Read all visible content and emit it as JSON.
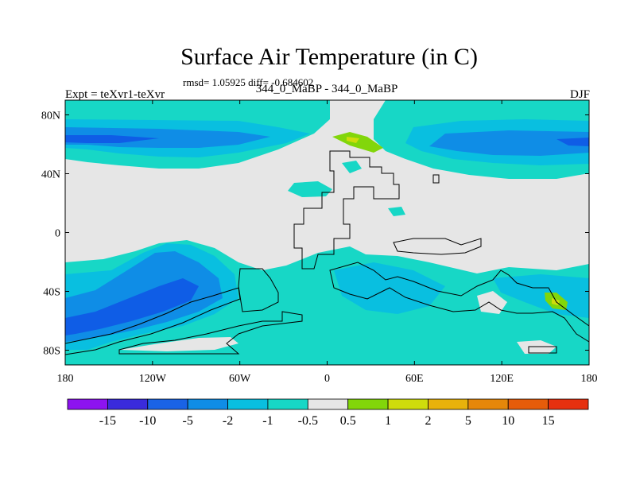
{
  "header": {
    "title": "Surface Air Temperature (in C)",
    "subtitle": "rmsd= 1.05925 diff= -0.684602",
    "left_label": "Expt = teXvr1-teXvr",
    "center_label": "344_0_MaBP - 344_0_MaBP",
    "right_label": "DJF"
  },
  "colors": {
    "no_change": "#e6e6e6",
    "cool_light": "#17d7c6",
    "cool_mid": "#09bfe0",
    "cool_strong": "#0f8de6",
    "cool_deep": "#0f5de6",
    "warm_light": "#8ed60a",
    "warm_mid": "#cfdc0c",
    "coast": "#000000"
  },
  "chart_data": {
    "type": "heatmap",
    "title": "Surface Air Temperature (in C)",
    "x_ticks": [
      "180",
      "120W",
      "60W",
      "0",
      "60E",
      "120E",
      "180"
    ],
    "x_values": [
      -180,
      -120,
      -60,
      0,
      60,
      120,
      180
    ],
    "y_ticks": [
      "80N",
      "40N",
      "0",
      "40S",
      "80S"
    ],
    "y_values": [
      80,
      40,
      0,
      -40,
      -80
    ],
    "xlim": [
      -180,
      180
    ],
    "ylim": [
      -90,
      90
    ],
    "colorbar": {
      "labels": [
        "-15",
        "-10",
        "-5",
        "-2",
        "-1",
        "-0.5",
        "0.5",
        "1",
        "2",
        "5",
        "10",
        "15"
      ],
      "colors": [
        "#8d13f0",
        "#3a2bdc",
        "#1a63e6",
        "#0f8de6",
        "#09bfe0",
        "#17d7c6",
        "#e6e6e6",
        "#82d60a",
        "#cfdc0c",
        "#e8b20b",
        "#e6870a",
        "#e65c0a",
        "#e6300f"
      ]
    }
  }
}
